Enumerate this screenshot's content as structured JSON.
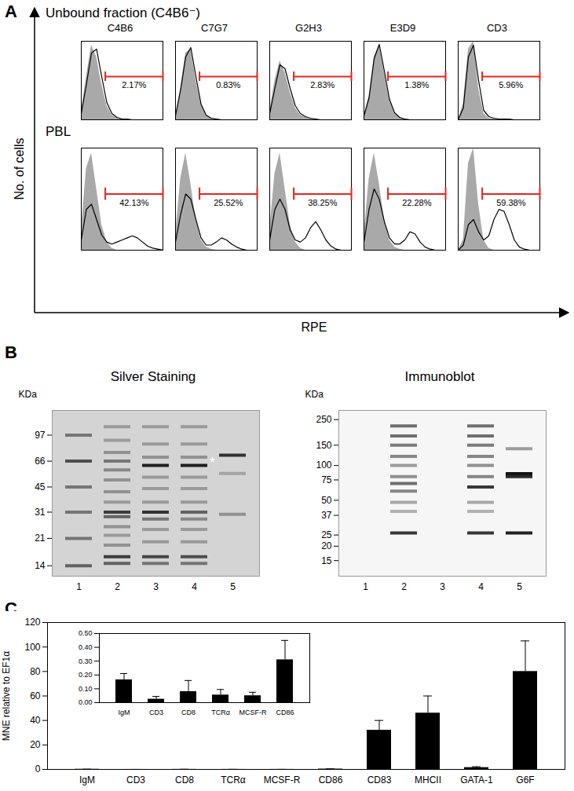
{
  "panel_labels": [
    "A",
    "B",
    "C"
  ],
  "flow_cytometry": {
    "y_axis_label": "No. of cells",
    "x_axis_label": "RPE",
    "log": "x",
    "tick_labels": false,
    "xlim": [
      1,
      10000
    ],
    "ylim": [
      0,
      100
    ],
    "x": [
      1,
      1.78,
      3.16,
      5.62,
      10,
      17.8,
      31.6,
      56.2,
      100,
      178,
      316,
      562,
      1000,
      1778,
      3162,
      5623,
      10000
    ],
    "antibodies": [
      "C4B6",
      "C7G7",
      "G2H3",
      "E3D9",
      "CD3"
    ],
    "rows": [
      {
        "title": "Unbound fraction (C4B6⁻)",
        "panels": [
          {
            "control": [
              10,
              55,
              95,
              80,
              45,
              18,
              6,
              2,
              1,
              0,
              0,
              0,
              0,
              0,
              0,
              0,
              0
            ],
            "sample": [
              8,
              45,
              85,
              90,
              55,
              22,
              8,
              3,
              1,
              1,
              0,
              0,
              0,
              0,
              0,
              0,
              0
            ],
            "gate": [
              15,
              10000
            ],
            "percent": {
              "value": 2.17,
              "label": "2.17%"
            }
          },
          {
            "control": [
              5,
              40,
              85,
              90,
              50,
              20,
              6,
              2,
              0,
              0,
              0,
              0,
              0,
              0,
              0,
              0,
              0
            ],
            "sample": [
              5,
              38,
              80,
              92,
              55,
              20,
              6,
              2,
              1,
              0,
              0,
              0,
              0,
              0,
              0,
              0,
              0
            ],
            "gate": [
              15,
              10000
            ],
            "percent": {
              "value": 0.83,
              "label": "0.83%"
            }
          },
          {
            "control": [
              10,
              50,
              75,
              60,
              35,
              15,
              6,
              3,
              1,
              0,
              0,
              0,
              0,
              0,
              0,
              0,
              0
            ],
            "sample": [
              8,
              40,
              70,
              65,
              40,
              18,
              8,
              4,
              2,
              1,
              0,
              0,
              0,
              0,
              0,
              0,
              0
            ],
            "gate": [
              15,
              10000
            ],
            "percent": {
              "value": 2.83,
              "label": "2.83%"
            }
          },
          {
            "control": [
              5,
              30,
              80,
              95,
              60,
              25,
              8,
              2,
              1,
              0,
              0,
              0,
              0,
              0,
              0,
              0,
              0
            ],
            "sample": [
              5,
              28,
              78,
              96,
              62,
              26,
              9,
              3,
              1,
              0,
              0,
              0,
              0,
              0,
              0,
              0,
              0
            ],
            "gate": [
              15,
              10000
            ],
            "percent": {
              "value": 1.38,
              "label": "1.38%"
            }
          },
          {
            "control": [
              0,
              20,
              90,
              100,
              40,
              8,
              2,
              1,
              0,
              0,
              0,
              0,
              0,
              0,
              0,
              0,
              0
            ],
            "sample": [
              0,
              15,
              80,
              95,
              50,
              12,
              4,
              2,
              1,
              1,
              1,
              0,
              0,
              0,
              0,
              0,
              0
            ],
            "gate": [
              15,
              10000
            ],
            "percent": {
              "value": 5.96,
              "label": "5.96%"
            }
          }
        ]
      },
      {
        "title": "PBL",
        "panels": [
          {
            "control": [
              20,
              80,
              95,
              60,
              25,
              8,
              2,
              0,
              0,
              0,
              0,
              0,
              0,
              0,
              0,
              0,
              0
            ],
            "sample": [
              10,
              40,
              45,
              30,
              15,
              8,
              6,
              8,
              10,
              12,
              14,
              12,
              8,
              4,
              2,
              1,
              0
            ],
            "gate": [
              15,
              10000
            ],
            "percent": {
              "value": 42.13,
              "label": "42.13%"
            }
          },
          {
            "control": [
              15,
              70,
              95,
              65,
              30,
              10,
              3,
              1,
              0,
              0,
              0,
              0,
              0,
              0,
              0,
              0,
              0
            ],
            "sample": [
              8,
              35,
              55,
              50,
              30,
              12,
              5,
              5,
              8,
              12,
              10,
              6,
              3,
              1,
              0,
              0,
              0
            ],
            "gate": [
              15,
              10000
            ],
            "percent": {
              "value": 25.52,
              "label": "25.52%"
            }
          },
          {
            "control": [
              20,
              75,
              95,
              60,
              25,
              8,
              2,
              0,
              0,
              0,
              0,
              0,
              0,
              0,
              0,
              0,
              0
            ],
            "sample": [
              10,
              40,
              50,
              40,
              20,
              10,
              8,
              12,
              22,
              28,
              20,
              10,
              4,
              1,
              0,
              0,
              0
            ],
            "gate": [
              15,
              10000
            ],
            "percent": {
              "value": 38.25,
              "label": "38.25%"
            }
          },
          {
            "control": [
              15,
              70,
              95,
              65,
              30,
              10,
              3,
              1,
              0,
              0,
              0,
              0,
              0,
              0,
              0,
              0,
              0
            ],
            "sample": [
              8,
              40,
              60,
              50,
              28,
              12,
              6,
              6,
              10,
              18,
              16,
              8,
              3,
              1,
              0,
              0,
              0
            ],
            "gate": [
              15,
              10000
            ],
            "percent": {
              "value": 22.28,
              "label": "22.28%"
            }
          },
          {
            "control": [
              0,
              10,
              85,
              100,
              45,
              10,
              2,
              0,
              0,
              0,
              0,
              0,
              0,
              0,
              0,
              0,
              0
            ],
            "sample": [
              0,
              5,
              25,
              30,
              18,
              10,
              14,
              30,
              40,
              38,
              25,
              10,
              3,
              1,
              0,
              0,
              0
            ],
            "gate": [
              15,
              10000
            ],
            "percent": {
              "value": 59.38,
              "label": "59.38%"
            }
          }
        ]
      }
    ]
  },
  "gels": {
    "panels": [
      {
        "title": "Silver Staining",
        "unit": "KDa",
        "log": "y",
        "ylim": [
          12,
          140
        ],
        "markers": [
          97,
          66,
          45,
          31,
          21,
          14
        ],
        "lanes": [
          1,
          2,
          3,
          4,
          5
        ],
        "bands": [
          {
            "lane": 1,
            "kda": 97,
            "intensity": 0.5
          },
          {
            "lane": 1,
            "kda": 66,
            "intensity": 0.7
          },
          {
            "lane": 1,
            "kda": 45,
            "intensity": 0.5
          },
          {
            "lane": 1,
            "kda": 31,
            "intensity": 0.5
          },
          {
            "lane": 1,
            "kda": 21,
            "intensity": 0.5
          },
          {
            "lane": 1,
            "kda": 14,
            "intensity": 0.6
          },
          {
            "lane": 2,
            "kda": 110,
            "intensity": 0.3
          },
          {
            "lane": 2,
            "kda": 90,
            "intensity": 0.3
          },
          {
            "lane": 2,
            "kda": 75,
            "intensity": 0.35
          },
          {
            "lane": 2,
            "kda": 66,
            "intensity": 0.5
          },
          {
            "lane": 2,
            "kda": 58,
            "intensity": 0.4
          },
          {
            "lane": 2,
            "kda": 50,
            "intensity": 0.35
          },
          {
            "lane": 2,
            "kda": 42,
            "intensity": 0.35
          },
          {
            "lane": 2,
            "kda": 36,
            "intensity": 0.3
          },
          {
            "lane": 2,
            "kda": 31,
            "intensity": 0.8
          },
          {
            "lane": 2,
            "kda": 29,
            "intensity": 0.6
          },
          {
            "lane": 2,
            "kda": 25,
            "intensity": 0.35
          },
          {
            "lane": 2,
            "kda": 22,
            "intensity": 0.3
          },
          {
            "lane": 2,
            "kda": 19,
            "intensity": 0.35
          },
          {
            "lane": 2,
            "kda": 16,
            "intensity": 0.8
          },
          {
            "lane": 2,
            "kda": 14.5,
            "intensity": 0.6
          },
          {
            "lane": 3,
            "kda": 110,
            "intensity": 0.3
          },
          {
            "lane": 3,
            "kda": 85,
            "intensity": 0.3
          },
          {
            "lane": 3,
            "kda": 70,
            "intensity": 0.35
          },
          {
            "lane": 3,
            "kda": 62,
            "intensity": 0.95
          },
          {
            "lane": 3,
            "kda": 52,
            "intensity": 0.3
          },
          {
            "lane": 3,
            "kda": 44,
            "intensity": 0.3
          },
          {
            "lane": 3,
            "kda": 36,
            "intensity": 0.3
          },
          {
            "lane": 3,
            "kda": 31,
            "intensity": 0.85
          },
          {
            "lane": 3,
            "kda": 28,
            "intensity": 0.5
          },
          {
            "lane": 3,
            "kda": 24,
            "intensity": 0.3
          },
          {
            "lane": 3,
            "kda": 20,
            "intensity": 0.3
          },
          {
            "lane": 3,
            "kda": 16,
            "intensity": 0.75
          },
          {
            "lane": 3,
            "kda": 14.5,
            "intensity": 0.5
          },
          {
            "lane": 4,
            "kda": 110,
            "intensity": 0.3
          },
          {
            "lane": 4,
            "kda": 85,
            "intensity": 0.3
          },
          {
            "lane": 4,
            "kda": 70,
            "intensity": 0.35
          },
          {
            "lane": 4,
            "kda": 62,
            "intensity": 0.95
          },
          {
            "lane": 4,
            "kda": 52,
            "intensity": 0.3
          },
          {
            "lane": 4,
            "kda": 44,
            "intensity": 0.3
          },
          {
            "lane": 4,
            "kda": 36,
            "intensity": 0.3
          },
          {
            "lane": 4,
            "kda": 31,
            "intensity": 0.6
          },
          {
            "lane": 4,
            "kda": 28,
            "intensity": 0.4
          },
          {
            "lane": 4,
            "kda": 24,
            "intensity": 0.3
          },
          {
            "lane": 4,
            "kda": 20,
            "intensity": 0.3
          },
          {
            "lane": 4,
            "kda": 16,
            "intensity": 0.7
          },
          {
            "lane": 4,
            "kda": 14.5,
            "intensity": 0.5
          },
          {
            "lane": 5,
            "kda": 72,
            "intensity": 0.85
          },
          {
            "lane": 5,
            "kda": 55,
            "intensity": 0.25
          },
          {
            "lane": 5,
            "kda": 30,
            "intensity": 0.35
          }
        ],
        "annotations": [
          {
            "text": "*",
            "lane": 5,
            "kda": 64
          }
        ]
      },
      {
        "title": "Immunoblot",
        "unit": "KDa",
        "log": "y",
        "ylim": [
          11,
          300
        ],
        "markers": [
          250,
          150,
          100,
          75,
          50,
          37,
          25,
          20,
          15
        ],
        "lanes": [
          1,
          2,
          3,
          4,
          5
        ],
        "bands": [
          {
            "lane": 2,
            "kda": 220,
            "intensity": 0.6
          },
          {
            "lane": 2,
            "kda": 180,
            "intensity": 0.6
          },
          {
            "lane": 2,
            "kda": 150,
            "intensity": 0.55
          },
          {
            "lane": 2,
            "kda": 120,
            "intensity": 0.5
          },
          {
            "lane": 2,
            "kda": 100,
            "intensity": 0.4
          },
          {
            "lane": 2,
            "kda": 80,
            "intensity": 0.45
          },
          {
            "lane": 2,
            "kda": 70,
            "intensity": 0.6
          },
          {
            "lane": 2,
            "kda": 60,
            "intensity": 0.5
          },
          {
            "lane": 2,
            "kda": 48,
            "intensity": 0.35
          },
          {
            "lane": 2,
            "kda": 40,
            "intensity": 0.3
          },
          {
            "lane": 2,
            "kda": 26,
            "intensity": 0.85
          },
          {
            "lane": 4,
            "kda": 220,
            "intensity": 0.6
          },
          {
            "lane": 4,
            "kda": 180,
            "intensity": 0.6
          },
          {
            "lane": 4,
            "kda": 150,
            "intensity": 0.55
          },
          {
            "lane": 4,
            "kda": 120,
            "intensity": 0.5
          },
          {
            "lane": 4,
            "kda": 100,
            "intensity": 0.45
          },
          {
            "lane": 4,
            "kda": 80,
            "intensity": 0.5
          },
          {
            "lane": 4,
            "kda": 65,
            "intensity": 0.85
          },
          {
            "lane": 4,
            "kda": 48,
            "intensity": 0.35
          },
          {
            "lane": 4,
            "kda": 40,
            "intensity": 0.3
          },
          {
            "lane": 4,
            "kda": 26,
            "intensity": 0.85
          },
          {
            "lane": 5,
            "kda": 140,
            "intensity": 0.4
          },
          {
            "lane": 5,
            "kda": 85,
            "intensity": 1.0
          },
          {
            "lane": 5,
            "kda": 80,
            "intensity": 0.9
          },
          {
            "lane": 5,
            "kda": 26,
            "intensity": 0.95
          }
        ]
      }
    ]
  },
  "chart_data": [
    {
      "type": "bar",
      "y_label": "MNE relative to EF1α",
      "categories": [
        "IgM",
        "CD3",
        "CD8",
        "TCRα",
        "MCSF-R",
        "CD86",
        "CD83",
        "MHCII",
        "GATA-1",
        "G6F"
      ],
      "values": [
        0.165,
        0.025,
        0.08,
        0.055,
        0.05,
        0.31,
        32,
        46,
        1.5,
        80
      ],
      "errors": [
        0.045,
        0.02,
        0.08,
        0.04,
        0.025,
        0.14,
        8,
        14,
        0.7,
        25
      ],
      "color": "#000000",
      "ylim": [
        0,
        120
      ],
      "yticks": [
        0,
        20,
        40,
        60,
        80,
        100,
        120
      ]
    },
    {
      "type": "bar",
      "categories": [
        "IgM",
        "CD3",
        "CD8",
        "TCRα",
        "MCSF-R",
        "CD86"
      ],
      "values": [
        0.165,
        0.025,
        0.08,
        0.055,
        0.05,
        0.31
      ],
      "errors": [
        0.045,
        0.02,
        0.08,
        0.04,
        0.025,
        0.14
      ],
      "color": "#000000",
      "ylim": [
        0,
        0.5
      ],
      "yticks": [
        0,
        0.1,
        0.2,
        0.3,
        0.4,
        0.5
      ]
    }
  ]
}
